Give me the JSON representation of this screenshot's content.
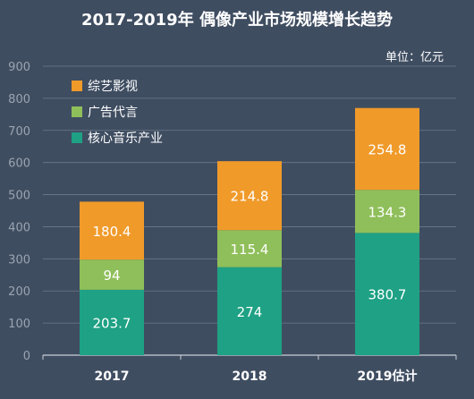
{
  "chart_data": {
    "type": "bar",
    "stacked": true,
    "title": "2017-2019年 偶像产业市场规模增长趋势",
    "unit_label": "单位：亿元",
    "categories": [
      "2017",
      "2018",
      "2019估计"
    ],
    "series": [
      {
        "name": "核心音乐产业",
        "values": [
          203.7,
          274,
          380.7
        ],
        "color": "#1ea184"
      },
      {
        "name": "广告代言",
        "values": [
          94,
          115.4,
          134.3
        ],
        "color": "#8fbf5a"
      },
      {
        "name": "综艺影视",
        "values": [
          180.4,
          214.8,
          254.8
        ],
        "color": "#f09a2a"
      }
    ],
    "legend_order": [
      "综艺影视",
      "广告代言",
      "核心音乐产业"
    ],
    "legend_position": "top-left",
    "ylim": [
      0,
      900
    ],
    "yticks": [
      0,
      100,
      200,
      300,
      400,
      500,
      600,
      700,
      800,
      900
    ],
    "grid": true,
    "colors": {
      "background": "#3f4d61",
      "grid": "#6e7a89",
      "axis_text": "#9aa4b0",
      "title": "#ffffff",
      "label": "#ffffff"
    }
  }
}
